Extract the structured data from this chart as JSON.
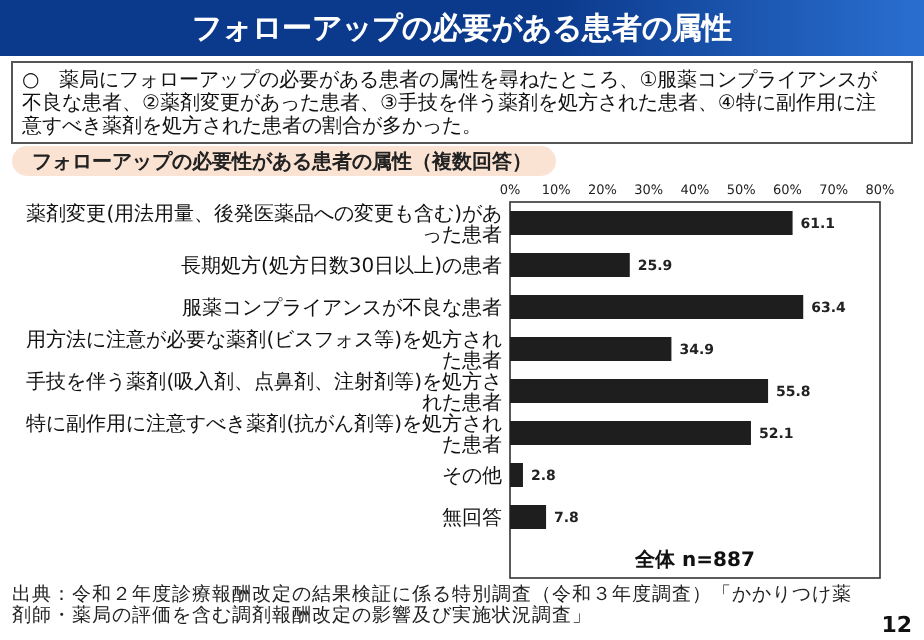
{
  "chart_data": {
    "type": "bar",
    "orientation": "horizontal",
    "title": "フォローアップの必要がある患者の属性",
    "subtitle": "フォローアップの必要性がある患者の属性（複数回答）",
    "categories": [
      "薬剤変更(用法用量、後発医薬品への変更も含む)があった患者",
      "長期処方(処方日数30日以上)の患者",
      "服薬コンプライアンスが不良な患者",
      "用方法に注意が必要な薬剤(ビスフォス等)を処方された患者",
      "手技を伴う薬剤(吸入剤、点鼻剤、注射剤等)を処方された患者",
      "特に副作用に注意すべき薬剤(抗がん剤等)を処方された患者",
      "その他",
      "無回答"
    ],
    "values": [
      61.1,
      25.9,
      63.4,
      34.9,
      55.8,
      52.1,
      2.8,
      7.8
    ],
    "color": "#1e1e1e",
    "data_labels": true,
    "xlim": [
      0,
      80
    ],
    "xticks": [
      {
        "value": 0,
        "label": "0%"
      },
      {
        "value": 10,
        "label": "10%"
      },
      {
        "value": 20,
        "label": "20%"
      },
      {
        "value": 30,
        "label": "30%"
      },
      {
        "value": 40,
        "label": "40%"
      },
      {
        "value": 50,
        "label": "50%"
      },
      {
        "value": 60,
        "label": "60%"
      },
      {
        "value": 70,
        "label": "70%"
      },
      {
        "value": 80,
        "label": "80%"
      }
    ],
    "annotations": [
      "○　薬局にフォローアップの必要がある患者の属性を尋ねたところ、①服薬コンプライアンスが不良な患者、②薬剤変更があった患者、③手技を伴う薬剤を処方された患者、④特に副作用に注意すべき薬剤を処方された患者の割合が多かった。",
      "全体 n=887",
      "出典：令和２年度診療報酬改定の結果検証に係る特別調査（令和３年度調査）「かかりつけ薬剤師・薬局の評価を含む調剤報酬改定の影響及び実施状況調査」",
      "12"
    ]
  }
}
